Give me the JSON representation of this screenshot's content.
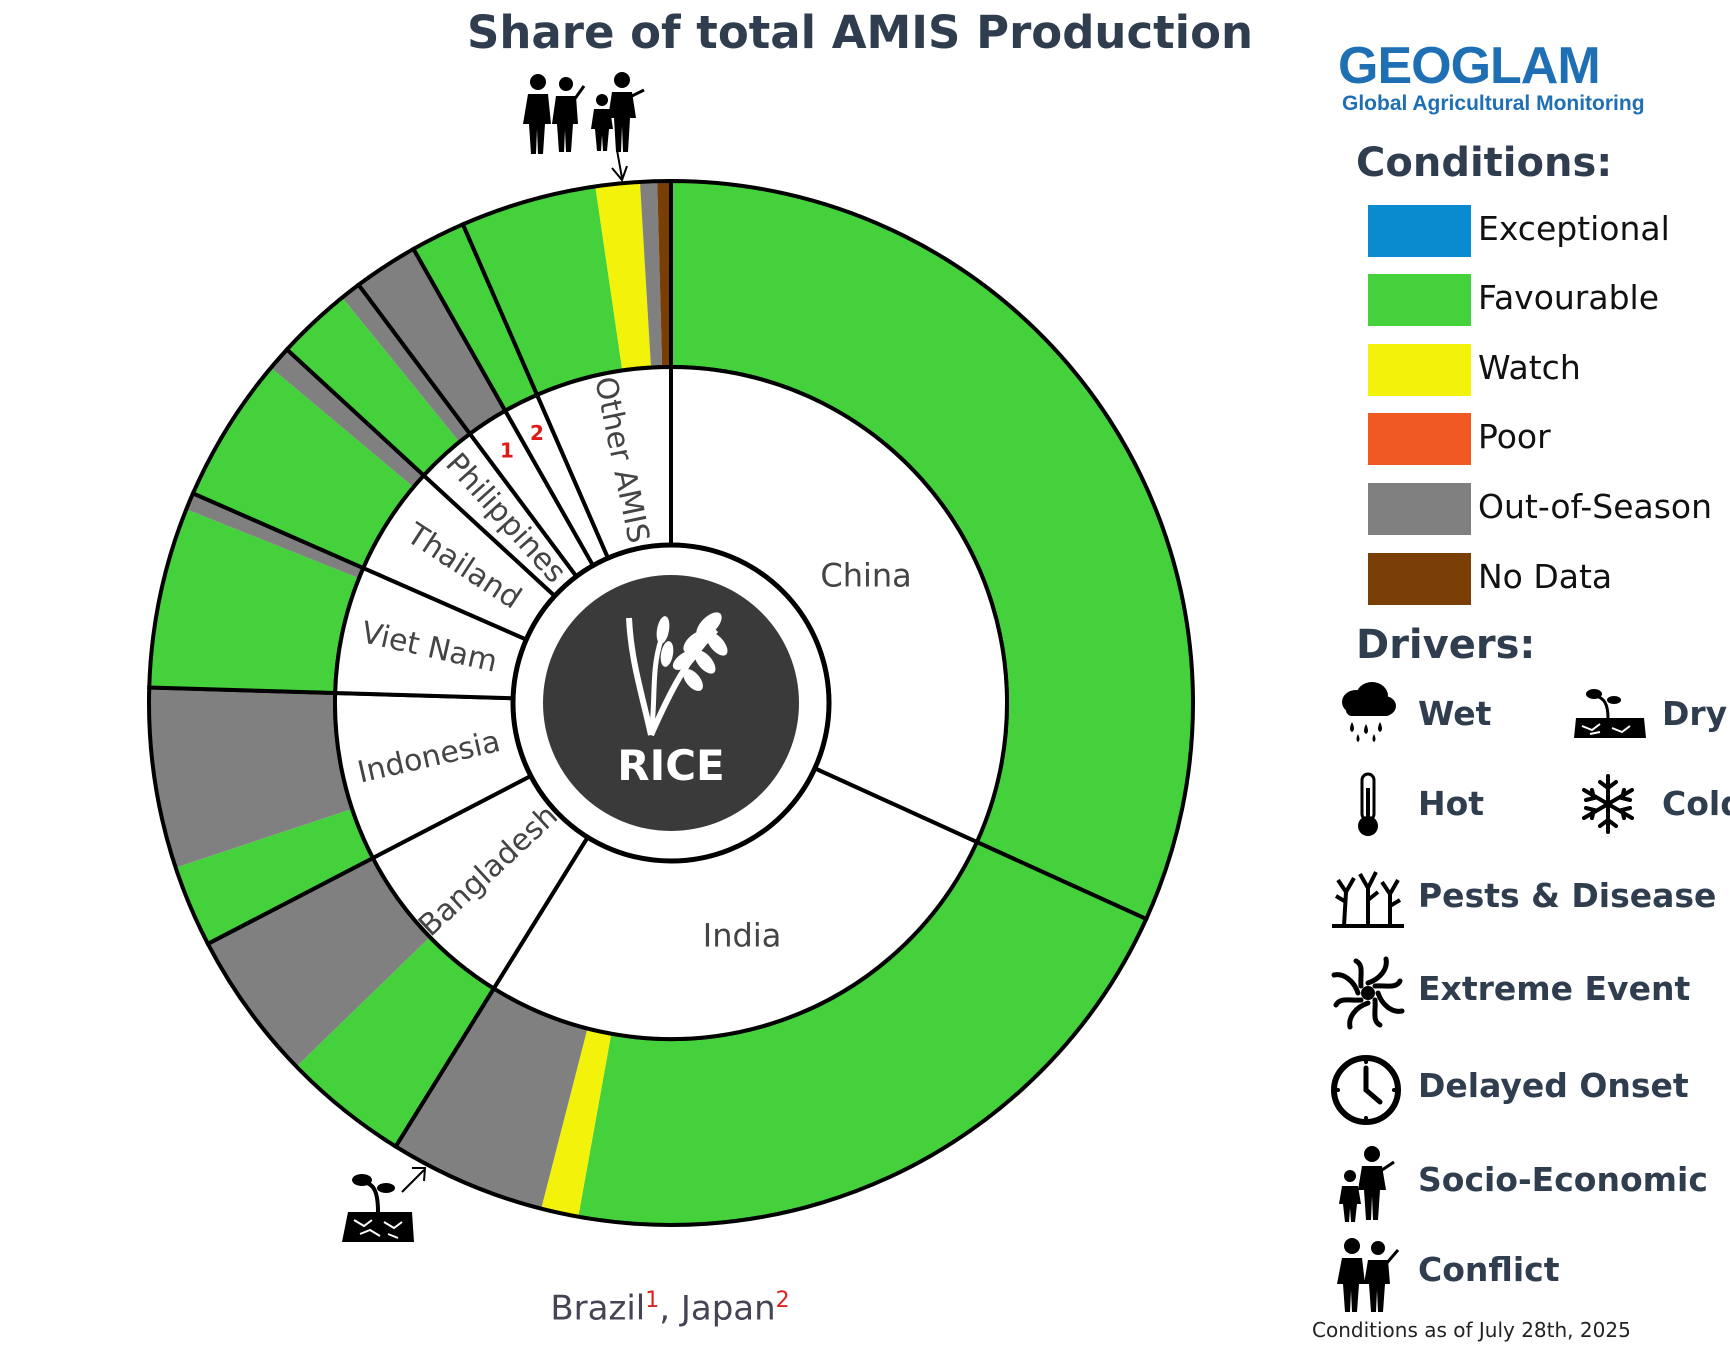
{
  "title": "Share of total AMIS Production",
  "footnote": {
    "brazil": "Brazil",
    "brazil_mark": "1",
    "sep": ", ",
    "japan": "Japan",
    "japan_mark": "2"
  },
  "logo": {
    "word": "GEOGLAM",
    "subtitle": "Global Agricultural Monitoring"
  },
  "legend": {
    "conditions_title": "Conditions:",
    "conditions": [
      {
        "label": "Exceptional",
        "color": "#0a8bd0"
      },
      {
        "label": "Favourable",
        "color": "#44d13c"
      },
      {
        "label": "Watch",
        "color": "#f2f20a"
      },
      {
        "label": "Poor",
        "color": "#f05a22"
      },
      {
        "label": "Out-of-Season",
        "color": "#808080"
      },
      {
        "label": "No Data",
        "color": "#7a3f06"
      }
    ],
    "drivers_title": "Drivers:",
    "drivers": [
      {
        "label": "Wet",
        "icon": "wet-icon"
      },
      {
        "label": "Dry",
        "icon": "dry-icon"
      },
      {
        "label": "Hot",
        "icon": "hot-icon"
      },
      {
        "label": "Cold",
        "icon": "cold-icon"
      },
      {
        "label": "Pests & Disease",
        "icon": "pests-disease-icon"
      },
      {
        "label": "Extreme Event",
        "icon": "extreme-event-icon"
      },
      {
        "label": "Delayed Onset",
        "icon": "delayed-onset-icon"
      },
      {
        "label": "Socio-Economic",
        "icon": "socio-economic-icon"
      },
      {
        "label": "Conflict",
        "icon": "conflict-icon"
      }
    ]
  },
  "conditions_date": "Conditions as of July 28th, 2025",
  "chart_data": {
    "type": "sunburst",
    "center_label": "RICE",
    "unit": "share of total AMIS production (%)",
    "countries": [
      {
        "name": "China",
        "label": "China",
        "share": 30.2,
        "segments": [
          {
            "condition": "Favourable",
            "share": 30.2
          }
        ]
      },
      {
        "name": "India",
        "label": "India",
        "share": 25.7,
        "segments": [
          {
            "condition": "Favourable",
            "share": 20.0
          },
          {
            "condition": "Watch",
            "share": 1.1
          },
          {
            "condition": "Out-of-Season",
            "share": 4.6
          }
        ],
        "drivers": [
          "Dry"
        ]
      },
      {
        "name": "Bangladesh",
        "label": "Bangladesh",
        "share": 8.1,
        "segments": [
          {
            "condition": "Favourable",
            "share": 3.7
          },
          {
            "condition": "Out-of-Season",
            "share": 4.4
          }
        ]
      },
      {
        "name": "Indonesia",
        "label": "Indonesia",
        "share": 7.7,
        "segments": [
          {
            "condition": "Favourable",
            "share": 2.4
          },
          {
            "condition": "Out-of-Season",
            "share": 5.3
          }
        ]
      },
      {
        "name": "Viet Nam",
        "label": "Viet Nam",
        "share": 5.8,
        "segments": [
          {
            "condition": "Favourable",
            "share": 5.3
          },
          {
            "condition": "Out-of-Season",
            "share": 0.5
          }
        ]
      },
      {
        "name": "Thailand",
        "label": "Thailand",
        "share": 5.0,
        "segments": [
          {
            "condition": "Favourable",
            "share": 4.3
          },
          {
            "condition": "Out-of-Season",
            "share": 0.7
          }
        ]
      },
      {
        "name": "Philippines",
        "label": "Philippines",
        "share": 2.8,
        "segments": [
          {
            "condition": "Favourable",
            "share": 2.2
          },
          {
            "condition": "Out-of-Season",
            "share": 0.6
          }
        ]
      },
      {
        "name": "Brazil",
        "label": "1",
        "share": 1.9,
        "segments": [
          {
            "condition": "Out-of-Season",
            "share": 1.9
          }
        ]
      },
      {
        "name": "Japan",
        "label": "2",
        "share": 1.6,
        "segments": [
          {
            "condition": "Favourable",
            "share": 1.6
          }
        ]
      },
      {
        "name": "Other AMIS",
        "label": "Other AMIS",
        "share": 6.2,
        "segments": [
          {
            "condition": "Favourable",
            "share": 4.0
          },
          {
            "condition": "Watch",
            "share": 1.3
          },
          {
            "condition": "Out-of-Season",
            "share": 0.5
          },
          {
            "condition": "No Data",
            "share": 0.4
          }
        ],
        "drivers": [
          "Conflict",
          "Socio-Economic"
        ]
      }
    ]
  }
}
